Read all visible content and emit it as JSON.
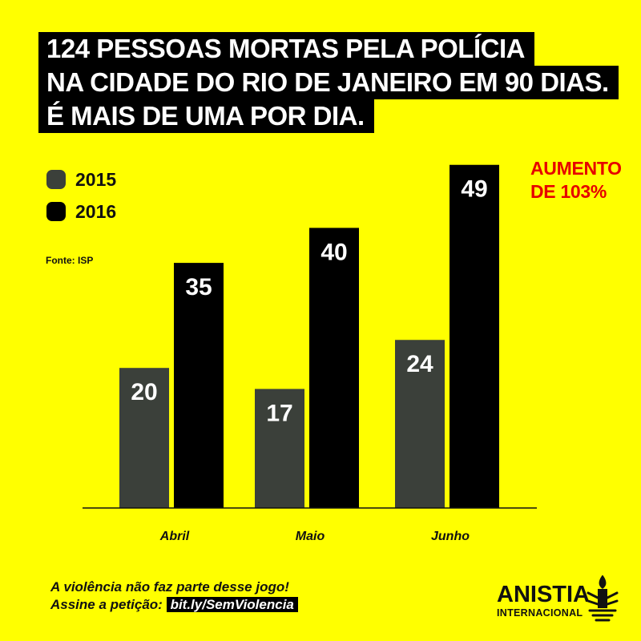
{
  "title": {
    "lines": [
      "124 PESSOAS MORTAS PELA POLÍCIA",
      "NA CIDADE DO RIO DE JANEIRO EM 90 DIAS.",
      "É MAIS DE UMA POR DIA."
    ]
  },
  "legend": [
    {
      "label": "2015",
      "color": "#3b403a"
    },
    {
      "label": "2016",
      "color": "#000000"
    }
  ],
  "source": "Fonte: ISP",
  "increase": {
    "line1": "AUMENTO",
    "line2": "DE 103%",
    "color": "#e60000"
  },
  "chart_data": {
    "type": "bar",
    "categories": [
      "Abril",
      "Maio",
      "Junho"
    ],
    "series": [
      {
        "name": "2015",
        "values": [
          20,
          17,
          24
        ],
        "color": "#3b403a"
      },
      {
        "name": "2016",
        "values": [
          35,
          40,
          49
        ],
        "color": "#000000"
      }
    ],
    "title": "124 PESSOAS MORTAS PELA POLÍCIA NA CIDADE DO RIO DE JANEIRO EM 90 DIAS.",
    "xlabel": "",
    "ylabel": "",
    "ylim": [
      0,
      50
    ],
    "grid": false,
    "legend": "top-left"
  },
  "footer": {
    "line1": "A violência não faz parte desse jogo!",
    "line2_prefix": "Assine a petição: ",
    "link": "bit.ly/SemViolencia"
  },
  "brand": {
    "name": "ANISTIA",
    "sub": "INTERNACIONAL"
  }
}
